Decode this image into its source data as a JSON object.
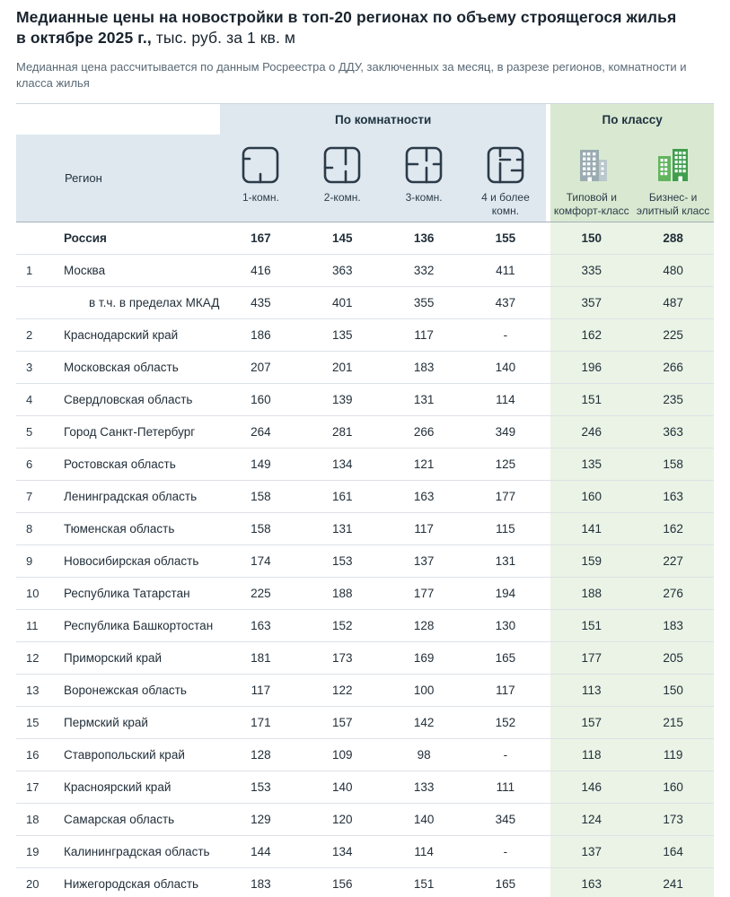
{
  "title": {
    "bold": "Медианные цены на новостройки в топ-20 регионах по объему строящегося жилья в октябре 2025 г.,",
    "normal": " тыс. руб. за 1 кв. м"
  },
  "subtitle": "Медианная цена рассчитывается по данным Росреестра о ДДУ, заключенных за месяц, в разрезе регионов, комнатности и класса жилья",
  "header": {
    "group_rooms": "По комнатности",
    "group_class": "По классу",
    "region": "Регион",
    "room_cols": [
      {
        "label": "1-комн.",
        "icon": "floorplan-1room-icon"
      },
      {
        "label": "2-комн.",
        "icon": "floorplan-2room-icon"
      },
      {
        "label": "3-комн.",
        "icon": "floorplan-3room-icon"
      },
      {
        "label": "4 и более комн.",
        "icon": "floorplan-4room-icon"
      }
    ],
    "class_cols": [
      {
        "label": "Типовой и комфорт-класс",
        "icon": "building-comfort-icon"
      },
      {
        "label": "Бизнес- и элитный класс",
        "icon": "building-business-icon"
      }
    ]
  },
  "colors": {
    "rooms_header_bg": "#dfe8ef",
    "class_header_bg": "#d9e9d1",
    "class_column_bg": "#eaf3e5",
    "floorplan_stroke": "#2c3b49",
    "building_comfort": "#9aabb1",
    "building_business": "#3f9e4d",
    "title_color": "#18232e",
    "subtitle_color": "#5a6a76"
  },
  "chart_data": {
    "type": "table",
    "title": "Медианные цены на новостройки в топ-20 регионах по объему строящегося жилья в октябре 2025 г., тыс. руб. за 1 кв. м",
    "columns": [
      "Регион",
      "1-комн.",
      "2-комн.",
      "3-комн.",
      "4 и более комн.",
      "Типовой и комфорт-класс",
      "Бизнес- и элитный класс"
    ],
    "rows": [
      {
        "rank": "",
        "region": "Россия",
        "style": "bold",
        "values": [
          "167",
          "145",
          "136",
          "155",
          "150",
          "288"
        ]
      },
      {
        "rank": "1",
        "region": "Москва",
        "style": "",
        "values": [
          "416",
          "363",
          "332",
          "411",
          "335",
          "480"
        ]
      },
      {
        "rank": "",
        "region": "в т.ч. в пределах МКАД",
        "style": "indent",
        "values": [
          "435",
          "401",
          "355",
          "437",
          "357",
          "487"
        ]
      },
      {
        "rank": "2",
        "region": "Краснодарский край",
        "style": "",
        "values": [
          "186",
          "135",
          "117",
          "-",
          "162",
          "225"
        ]
      },
      {
        "rank": "3",
        "region": "Московская область",
        "style": "",
        "values": [
          "207",
          "201",
          "183",
          "140",
          "196",
          "266"
        ]
      },
      {
        "rank": "4",
        "region": "Свердловская область",
        "style": "",
        "values": [
          "160",
          "139",
          "131",
          "114",
          "151",
          "235"
        ]
      },
      {
        "rank": "5",
        "region": "Город Санкт-Петербург",
        "style": "",
        "values": [
          "264",
          "281",
          "266",
          "349",
          "246",
          "363"
        ]
      },
      {
        "rank": "6",
        "region": "Ростовская область",
        "style": "",
        "values": [
          "149",
          "134",
          "121",
          "125",
          "135",
          "158"
        ]
      },
      {
        "rank": "7",
        "region": "Ленинградская область",
        "style": "",
        "values": [
          "158",
          "161",
          "163",
          "177",
          "160",
          "163"
        ]
      },
      {
        "rank": "8",
        "region": "Тюменская область",
        "style": "",
        "values": [
          "158",
          "131",
          "117",
          "115",
          "141",
          "162"
        ]
      },
      {
        "rank": "9",
        "region": "Новосибирская область",
        "style": "",
        "values": [
          "174",
          "153",
          "137",
          "131",
          "159",
          "227"
        ]
      },
      {
        "rank": "10",
        "region": "Республика Татарстан",
        "style": "",
        "values": [
          "225",
          "188",
          "177",
          "194",
          "188",
          "276"
        ]
      },
      {
        "rank": "11",
        "region": "Республика Башкортостан",
        "style": "",
        "values": [
          "163",
          "152",
          "128",
          "130",
          "151",
          "183"
        ]
      },
      {
        "rank": "12",
        "region": "Приморский край",
        "style": "",
        "values": [
          "181",
          "173",
          "169",
          "165",
          "177",
          "205"
        ]
      },
      {
        "rank": "13",
        "region": "Воронежская область",
        "style": "",
        "values": [
          "117",
          "122",
          "100",
          "117",
          "113",
          "150"
        ]
      },
      {
        "rank": "15",
        "region": "Пермский край",
        "style": "",
        "values": [
          "171",
          "157",
          "142",
          "152",
          "157",
          "215"
        ]
      },
      {
        "rank": "16",
        "region": "Ставропольский край",
        "style": "",
        "values": [
          "128",
          "109",
          "98",
          "-",
          "118",
          "119"
        ]
      },
      {
        "rank": "17",
        "region": "Красноярский край",
        "style": "",
        "values": [
          "153",
          "140",
          "133",
          "111",
          "146",
          "160"
        ]
      },
      {
        "rank": "18",
        "region": "Самарская область",
        "style": "",
        "values": [
          "129",
          "120",
          "140",
          "345",
          "124",
          "173"
        ]
      },
      {
        "rank": "19",
        "region": "Калининградская область",
        "style": "",
        "values": [
          "144",
          "134",
          "114",
          "-",
          "137",
          "164"
        ]
      },
      {
        "rank": "20",
        "region": "Нижегородская область",
        "style": "",
        "values": [
          "183",
          "156",
          "151",
          "165",
          "163",
          "241"
        ]
      }
    ]
  }
}
